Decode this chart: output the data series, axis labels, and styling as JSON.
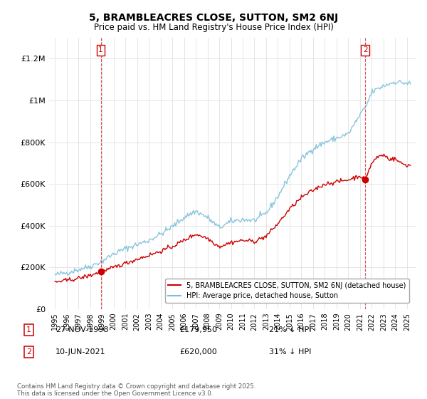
{
  "title": "5, BRAMBLEACRES CLOSE, SUTTON, SM2 6NJ",
  "subtitle": "Price paid vs. HM Land Registry's House Price Index (HPI)",
  "footer": "Contains HM Land Registry data © Crown copyright and database right 2025.\nThis data is licensed under the Open Government Licence v3.0.",
  "legend_line1": "5, BRAMBLEACRES CLOSE, SUTTON, SM2 6NJ (detached house)",
  "legend_line2": "HPI: Average price, detached house, Sutton",
  "table": [
    {
      "num": "1",
      "date": "27-NOV-1998",
      "price": "£179,950",
      "hpi": "21% ↓ HPI"
    },
    {
      "num": "2",
      "date": "10-JUN-2021",
      "price": "£620,000",
      "hpi": "31% ↓ HPI"
    }
  ],
  "hpi_color": "#7bbfdb",
  "sale_color": "#cc0000",
  "marker1_x": 1998.9,
  "marker1_y": 179950,
  "marker2_x": 2021.44,
  "marker2_y": 620000,
  "vline1_x": 1998.9,
  "vline2_x": 2021.44,
  "ylim": [
    0,
    1300000
  ],
  "xlim": [
    1994.5,
    2025.8
  ],
  "yticks": [
    0,
    200000,
    400000,
    600000,
    800000,
    1000000,
    1200000
  ],
  "ytick_labels": [
    "£0",
    "£200K",
    "£400K",
    "£600K",
    "£800K",
    "£1M",
    "£1.2M"
  ],
  "xticks": [
    1995,
    1996,
    1997,
    1998,
    1999,
    2000,
    2001,
    2002,
    2003,
    2004,
    2005,
    2006,
    2007,
    2008,
    2009,
    2010,
    2011,
    2012,
    2013,
    2014,
    2015,
    2016,
    2017,
    2018,
    2019,
    2020,
    2021,
    2022,
    2023,
    2024,
    2025
  ],
  "background_color": "#ffffff",
  "grid_color": "#e0e0e0",
  "hpi_anchors_x": [
    1995,
    1996,
    1997,
    1998,
    1999,
    2000,
    2001,
    2002,
    2003,
    2004,
    2005,
    2006,
    2007,
    2008,
    2009,
    2010,
    2011,
    2012,
    2013,
    2014,
    2015,
    2016,
    2017,
    2018,
    2019,
    2020,
    2021,
    2021.5,
    2022,
    2023,
    2024,
    2025.3
  ],
  "hpi_anchors_y": [
    165000,
    175000,
    190000,
    205000,
    230000,
    265000,
    290000,
    310000,
    330000,
    360000,
    395000,
    440000,
    470000,
    440000,
    390000,
    420000,
    430000,
    425000,
    460000,
    540000,
    640000,
    720000,
    770000,
    800000,
    820000,
    840000,
    930000,
    970000,
    1040000,
    1070000,
    1090000,
    1080000
  ],
  "red_anchors_x": [
    1995,
    1996,
    1997,
    1998,
    1998.9,
    1999,
    2000,
    2001,
    2002,
    2003,
    2004,
    2005,
    2006,
    2007,
    2008,
    2009,
    2010,
    2011,
    2012,
    2013,
    2014,
    2015,
    2016,
    2017,
    2018,
    2019,
    2020,
    2021,
    2021.44,
    2021.7,
    2022,
    2022.5,
    2023,
    2023.5,
    2024,
    2024.5,
    2025,
    2025.3
  ],
  "red_anchors_y": [
    130000,
    138000,
    148000,
    162000,
    179950,
    178000,
    200000,
    220000,
    240000,
    258000,
    278000,
    300000,
    330000,
    360000,
    340000,
    300000,
    320000,
    330000,
    325000,
    350000,
    410000,
    480000,
    535000,
    570000,
    600000,
    610000,
    620000,
    640000,
    620000,
    660000,
    700000,
    730000,
    740000,
    720000,
    720000,
    700000,
    690000,
    690000
  ]
}
